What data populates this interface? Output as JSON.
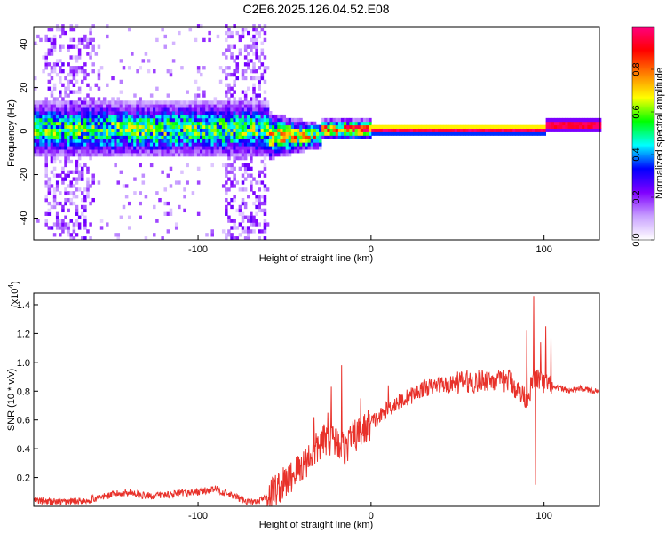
{
  "title": "C2E6.2025.126.04.52.E08",
  "chart_data": [
    {
      "type": "heatmap",
      "xlabel": "Height of straight line (km)",
      "ylabel": "Frequency (Hz)",
      "xlim": [
        -195,
        132
      ],
      "ylim": [
        -50,
        48
      ],
      "xticks": [
        -100,
        0,
        100
      ],
      "yticks": [
        -40,
        -20,
        0,
        20,
        40
      ],
      "colorbar": {
        "label": "Normalized spectral amplitude",
        "range": [
          0,
          1
        ],
        "ticks": [
          "0.0",
          "0.2",
          "0.4",
          "0.6",
          "0.8"
        ],
        "tick_values": [
          0.0,
          0.2,
          0.4,
          0.6,
          0.8
        ],
        "colors": [
          "#ffffff",
          "#c8a0ff",
          "#8000ff",
          "#0000ff",
          "#00ffff",
          "#00ff00",
          "#ffff00",
          "#ff8000",
          "#ff0000",
          "#ff0080"
        ]
      },
      "ridge_frequency_hz": 0,
      "noise_band_ranges_km": [
        [
          -190,
          -160
        ],
        [
          -85,
          -62
        ]
      ]
    },
    {
      "type": "line",
      "xlabel": "Height of straight line (km)",
      "ylabel": "SNR (10 * v/v)",
      "y_multiplier": "(x10",
      "y_multiplier_exp": "4",
      "y_multiplier_close": ")",
      "xlim": [
        -195,
        132
      ],
      "ylim": [
        0,
        1.48
      ],
      "xticks": [
        -100,
        0,
        100
      ],
      "yticks": [
        0.2,
        0.4,
        0.6,
        0.8,
        1.0,
        1.2,
        1.4
      ],
      "ytick_labels": [
        "0.2",
        "0.4",
        "0.6",
        "0.8",
        "1.0",
        "1.2",
        "1.4"
      ],
      "series": [
        {
          "color": "#e8312a",
          "x": [
            -195,
            -180,
            -165,
            -150,
            -140,
            -130,
            -120,
            -110,
            -100,
            -90,
            -80,
            -70,
            -65,
            -60,
            -55,
            -50,
            -45,
            -40,
            -35,
            -30,
            -25,
            -20,
            -15,
            -10,
            -5,
            0,
            5,
            10,
            15,
            20,
            25,
            30,
            35,
            40,
            45,
            50,
            55,
            60,
            65,
            70,
            75,
            80,
            85,
            90,
            95,
            100,
            105,
            110,
            115,
            120,
            125,
            132
          ],
          "y": [
            0.04,
            0.03,
            0.04,
            0.08,
            0.1,
            0.07,
            0.08,
            0.09,
            0.1,
            0.12,
            0.07,
            0.03,
            0.03,
            0.07,
            0.12,
            0.16,
            0.22,
            0.28,
            0.35,
            0.42,
            0.48,
            0.45,
            0.4,
            0.48,
            0.52,
            0.58,
            0.62,
            0.68,
            0.72,
            0.75,
            0.78,
            0.82,
            0.83,
            0.85,
            0.84,
            0.86,
            0.87,
            0.86,
            0.88,
            0.88,
            0.86,
            0.88,
            0.8,
            0.75,
            0.9,
            0.85,
            0.82,
            0.82,
            0.8,
            0.82,
            0.81,
            0.8
          ]
        }
      ],
      "spikes": [
        {
          "x": -33,
          "y": 0.62
        },
        {
          "x": -25,
          "y": 0.65
        },
        {
          "x": -23,
          "y": 0.83
        },
        {
          "x": -20,
          "y": 0.45
        },
        {
          "x": -17,
          "y": 0.98
        },
        {
          "x": -12,
          "y": 0.56
        },
        {
          "x": -6,
          "y": 0.75
        },
        {
          "x": 10,
          "y": 0.84
        },
        {
          "x": 90,
          "y": 1.22
        },
        {
          "x": 94,
          "y": 1.46
        },
        {
          "x": 95,
          "y": 0.15
        },
        {
          "x": 98,
          "y": 1.14
        },
        {
          "x": 101,
          "y": 1.25
        },
        {
          "x": 104,
          "y": 1.17
        }
      ]
    }
  ]
}
